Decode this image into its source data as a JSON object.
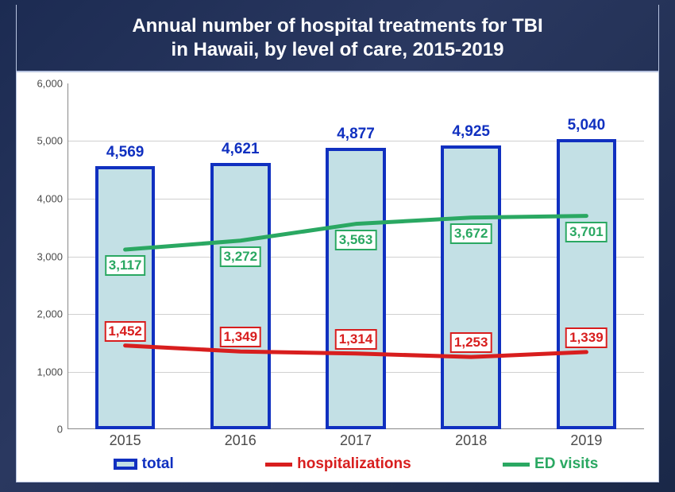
{
  "title_line1": "Annual number of hospital treatments for TBI",
  "title_line2": "in Hawaii, by level of care, 2015-2019",
  "chart": {
    "type": "bar+line",
    "background_color": "#ffffff",
    "outer_background_color": "#1c2b52",
    "grid_color": "#d0d0d0",
    "axis_color": "#888888",
    "categories": [
      "2015",
      "2016",
      "2017",
      "2018",
      "2019"
    ],
    "ylim": [
      0,
      6000
    ],
    "ytick_step": 1000,
    "ytick_labels": [
      "0",
      "1,000",
      "2,000",
      "3,000",
      "4,000",
      "5,000",
      "6,000"
    ],
    "x_label_fontsize": 18,
    "y_label_fontsize": 13,
    "y_label_color": "#4a4a4a",
    "x_label_color": "#4a4a4a",
    "bars": {
      "name": "total",
      "values": [
        4569,
        4621,
        4877,
        4925,
        5040
      ],
      "labels": [
        "4,569",
        "4,621",
        "4,877",
        "4,925",
        "5,040"
      ],
      "fill_color": "#c3e0e5",
      "border_color": "#1030c0",
      "border_width": 4,
      "label_color": "#1030c0",
      "label_fontsize": 19,
      "bar_width_fraction": 0.52
    },
    "lines": [
      {
        "name": "hospitalizations",
        "values": [
          1452,
          1349,
          1314,
          1253,
          1339
        ],
        "labels": [
          "1,452",
          "1,349",
          "1,314",
          "1,253",
          "1,339"
        ],
        "color": "#d81e1e",
        "line_width": 5,
        "label_color": "#d81e1e",
        "label_border_color": "#d81e1e",
        "label_fontsize": 17,
        "label_offset_y": -18
      },
      {
        "name": "ED visits",
        "values": [
          3117,
          3272,
          3563,
          3672,
          3701
        ],
        "labels": [
          "3,117",
          "3,272",
          "3,563",
          "3,672",
          "3,701"
        ],
        "color": "#2aa862",
        "line_width": 5,
        "label_color": "#2aa862",
        "label_border_color": "#2aa862",
        "label_fontsize": 17,
        "label_offset_y": 20
      }
    ],
    "legend": {
      "items": [
        {
          "kind": "bar",
          "label": "total",
          "fill": "#c3e0e5",
          "border": "#1030c0",
          "text_color": "#1030c0"
        },
        {
          "kind": "line",
          "label": "hospitalizations",
          "color": "#d81e1e",
          "text_color": "#d81e1e"
        },
        {
          "kind": "line",
          "label": "ED visits",
          "color": "#2aa862",
          "text_color": "#2aa862"
        }
      ],
      "fontsize": 19
    }
  }
}
